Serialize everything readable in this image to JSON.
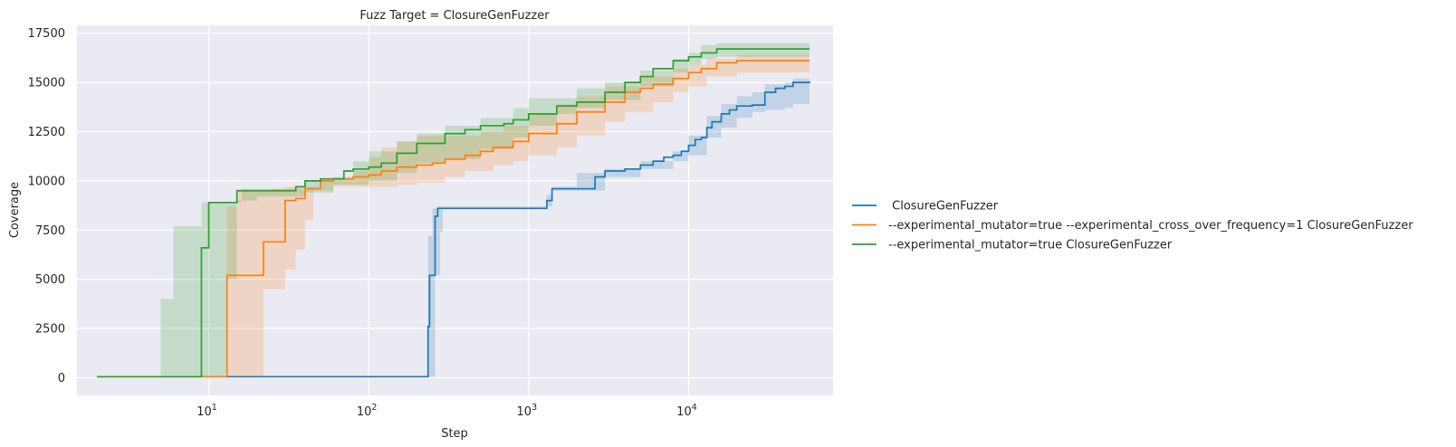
{
  "chart_data": {
    "type": "line",
    "title": "Fuzz Target = ClosureGenFuzzer",
    "xlabel": "Step",
    "ylabel": "Coverage",
    "xscale": "log",
    "xlim": [
      1.5,
      80000
    ],
    "ylim": [
      -900,
      17900
    ],
    "x_ticks": [
      {
        "value": 10,
        "base": "10",
        "exp": "1"
      },
      {
        "value": 100,
        "base": "10",
        "exp": "2"
      },
      {
        "value": 1000,
        "base": "10",
        "exp": "3"
      },
      {
        "value": 10000,
        "base": "10",
        "exp": "4"
      }
    ],
    "y_ticks": [
      0,
      2500,
      5000,
      7500,
      10000,
      12500,
      15000,
      17500
    ],
    "grid": true,
    "legend_position": "right",
    "series": [
      {
        "name": " ClosureGenFuzzer",
        "color": "#1f77b4",
        "points": [
          [
            2,
            50
          ],
          [
            230,
            50
          ],
          [
            235,
            2600
          ],
          [
            240,
            5200
          ],
          [
            255,
            5200
          ],
          [
            260,
            8200
          ],
          [
            270,
            8600
          ],
          [
            1200,
            8600
          ],
          [
            1300,
            9000
          ],
          [
            1400,
            9600
          ],
          [
            2500,
            9600
          ],
          [
            2600,
            10200
          ],
          [
            3000,
            10500
          ],
          [
            4000,
            10600
          ],
          [
            5000,
            10800
          ],
          [
            6000,
            11000
          ],
          [
            7000,
            11200
          ],
          [
            8000,
            11300
          ],
          [
            9000,
            11500
          ],
          [
            10000,
            11800
          ],
          [
            11000,
            12100
          ],
          [
            12000,
            12200
          ],
          [
            13000,
            12700
          ],
          [
            14000,
            13000
          ],
          [
            16000,
            13400
          ],
          [
            18000,
            13600
          ],
          [
            20000,
            13800
          ],
          [
            25000,
            13850
          ],
          [
            30000,
            14500
          ],
          [
            35000,
            14700
          ],
          [
            40000,
            14800
          ],
          [
            45000,
            15000
          ],
          [
            57000,
            15050
          ]
        ],
        "band_upper": [
          [
            2,
            50
          ],
          [
            225,
            50
          ],
          [
            235,
            7200
          ],
          [
            250,
            8600
          ],
          [
            260,
            8600
          ],
          [
            270,
            8700
          ],
          [
            1200,
            8700
          ],
          [
            1300,
            9300
          ],
          [
            1400,
            9700
          ],
          [
            2000,
            10400
          ],
          [
            3000,
            10600
          ],
          [
            5000,
            11000
          ],
          [
            8000,
            11500
          ],
          [
            10000,
            12300
          ],
          [
            13000,
            13300
          ],
          [
            16000,
            13900
          ],
          [
            20000,
            14300
          ],
          [
            25000,
            14500
          ],
          [
            30000,
            14900
          ],
          [
            40000,
            15000
          ],
          [
            45000,
            15200
          ],
          [
            57000,
            15200
          ]
        ],
        "band_lower": [
          [
            2,
            50
          ],
          [
            255,
            50
          ],
          [
            260,
            5200
          ],
          [
            280,
            7400
          ],
          [
            290,
            8600
          ],
          [
            1200,
            8600
          ],
          [
            1300,
            8700
          ],
          [
            1400,
            9500
          ],
          [
            2500,
            9500
          ],
          [
            3000,
            10200
          ],
          [
            5000,
            10600
          ],
          [
            8000,
            11000
          ],
          [
            10000,
            11300
          ],
          [
            13000,
            12200
          ],
          [
            16000,
            12700
          ],
          [
            20000,
            13200
          ],
          [
            25000,
            13500
          ],
          [
            30000,
            13600
          ],
          [
            40000,
            13700
          ],
          [
            45000,
            13900
          ],
          [
            57000,
            14100
          ]
        ]
      },
      {
        "name": "--experimental_mutator=true --experimental_cross_over_frequency=1 ClosureGenFuzzer",
        "color": "#ff7f0e",
        "points": [
          [
            2,
            50
          ],
          [
            12,
            50
          ],
          [
            13,
            5200
          ],
          [
            20,
            5200
          ],
          [
            22,
            6900
          ],
          [
            28,
            6900
          ],
          [
            30,
            9000
          ],
          [
            35,
            9100
          ],
          [
            40,
            9600
          ],
          [
            50,
            10000
          ],
          [
            60,
            10100
          ],
          [
            80,
            10200
          ],
          [
            100,
            10300
          ],
          [
            120,
            10500
          ],
          [
            150,
            10700
          ],
          [
            200,
            10800
          ],
          [
            250,
            10900
          ],
          [
            300,
            11100
          ],
          [
            400,
            11300
          ],
          [
            500,
            11500
          ],
          [
            600,
            11700
          ],
          [
            800,
            12000
          ],
          [
            1000,
            12400
          ],
          [
            1500,
            12900
          ],
          [
            2000,
            13500
          ],
          [
            3000,
            14000
          ],
          [
            4000,
            14500
          ],
          [
            5000,
            14700
          ],
          [
            6000,
            14900
          ],
          [
            8000,
            15200
          ],
          [
            10000,
            15500
          ],
          [
            12000,
            15700
          ],
          [
            15000,
            16000
          ],
          [
            20000,
            16100
          ],
          [
            57000,
            16100
          ]
        ],
        "band_upper": [
          [
            2,
            50
          ],
          [
            11,
            50
          ],
          [
            13,
            8700
          ],
          [
            15,
            9500
          ],
          [
            20,
            9500
          ],
          [
            25,
            9600
          ],
          [
            30,
            9700
          ],
          [
            50,
            10100
          ],
          [
            80,
            10500
          ],
          [
            100,
            11200
          ],
          [
            120,
            11700
          ],
          [
            150,
            12000
          ],
          [
            200,
            12300
          ],
          [
            300,
            12300
          ],
          [
            500,
            12500
          ],
          [
            700,
            12800
          ],
          [
            1000,
            13400
          ],
          [
            1500,
            13900
          ],
          [
            2000,
            14300
          ],
          [
            3000,
            14800
          ],
          [
            5000,
            15300
          ],
          [
            8000,
            15700
          ],
          [
            10000,
            15900
          ],
          [
            13000,
            16200
          ],
          [
            20000,
            16400
          ],
          [
            57000,
            16400
          ]
        ],
        "band_lower": [
          [
            2,
            50
          ],
          [
            20,
            50
          ],
          [
            22,
            4500
          ],
          [
            30,
            5500
          ],
          [
            35,
            6500
          ],
          [
            40,
            8000
          ],
          [
            45,
            9500
          ],
          [
            60,
            9700
          ],
          [
            100,
            9700
          ],
          [
            150,
            9800
          ],
          [
            200,
            9900
          ],
          [
            300,
            10200
          ],
          [
            400,
            10500
          ],
          [
            600,
            10800
          ],
          [
            800,
            11000
          ],
          [
            1000,
            11300
          ],
          [
            1500,
            11700
          ],
          [
            2000,
            12300
          ],
          [
            3000,
            13000
          ],
          [
            4000,
            13500
          ],
          [
            6000,
            14000
          ],
          [
            8000,
            14500
          ],
          [
            10000,
            14800
          ],
          [
            13000,
            15300
          ],
          [
            20000,
            15500
          ],
          [
            57000,
            15600
          ]
        ]
      },
      {
        "name": "--experimental_mutator=true ClosureGenFuzzer",
        "color": "#2ca02c",
        "points": [
          [
            2,
            50
          ],
          [
            8,
            50
          ],
          [
            9,
            6600
          ],
          [
            10,
            8900
          ],
          [
            14,
            8900
          ],
          [
            15,
            9500
          ],
          [
            25,
            9500
          ],
          [
            35,
            9700
          ],
          [
            40,
            10000
          ],
          [
            50,
            10100
          ],
          [
            60,
            10100
          ],
          [
            70,
            10500
          ],
          [
            80,
            10600
          ],
          [
            100,
            10700
          ],
          [
            120,
            10900
          ],
          [
            150,
            11400
          ],
          [
            200,
            11900
          ],
          [
            300,
            12400
          ],
          [
            400,
            12600
          ],
          [
            500,
            12800
          ],
          [
            700,
            12900
          ],
          [
            800,
            13100
          ],
          [
            1000,
            13400
          ],
          [
            1500,
            13800
          ],
          [
            2000,
            14000
          ],
          [
            3000,
            14500
          ],
          [
            4000,
            15000
          ],
          [
            5000,
            15300
          ],
          [
            6000,
            15700
          ],
          [
            8000,
            16100
          ],
          [
            10000,
            16300
          ],
          [
            12000,
            16500
          ],
          [
            15000,
            16700
          ],
          [
            57000,
            16700
          ]
        ],
        "band_upper": [
          [
            2,
            50
          ],
          [
            4,
            50
          ],
          [
            5,
            4000
          ],
          [
            6,
            7700
          ],
          [
            8,
            7700
          ],
          [
            9,
            8900
          ],
          [
            14,
            8900
          ],
          [
            16,
            9600
          ],
          [
            30,
            9600
          ],
          [
            40,
            10000
          ],
          [
            60,
            10200
          ],
          [
            80,
            11000
          ],
          [
            100,
            11500
          ],
          [
            150,
            12000
          ],
          [
            200,
            12400
          ],
          [
            300,
            12800
          ],
          [
            500,
            13200
          ],
          [
            800,
            13700
          ],
          [
            1000,
            14200
          ],
          [
            2000,
            14700
          ],
          [
            3000,
            15000
          ],
          [
            5000,
            15600
          ],
          [
            8000,
            16200
          ],
          [
            10000,
            16500
          ],
          [
            12000,
            16900
          ],
          [
            15000,
            17000
          ],
          [
            57000,
            17000
          ]
        ],
        "band_lower": [
          [
            2,
            50
          ],
          [
            12,
            50
          ],
          [
            13,
            5000
          ],
          [
            15,
            9000
          ],
          [
            20,
            9200
          ],
          [
            40,
            9400
          ],
          [
            60,
            9800
          ],
          [
            100,
            10000
          ],
          [
            150,
            10400
          ],
          [
            200,
            10900
          ],
          [
            300,
            11100
          ],
          [
            500,
            11600
          ],
          [
            800,
            12200
          ],
          [
            1000,
            12800
          ],
          [
            1500,
            13400
          ],
          [
            2000,
            13700
          ],
          [
            3000,
            14100
          ],
          [
            5000,
            14800
          ],
          [
            8000,
            15500
          ],
          [
            10000,
            15900
          ],
          [
            12000,
            16200
          ],
          [
            15000,
            16300
          ],
          [
            57000,
            16300
          ]
        ]
      }
    ]
  }
}
